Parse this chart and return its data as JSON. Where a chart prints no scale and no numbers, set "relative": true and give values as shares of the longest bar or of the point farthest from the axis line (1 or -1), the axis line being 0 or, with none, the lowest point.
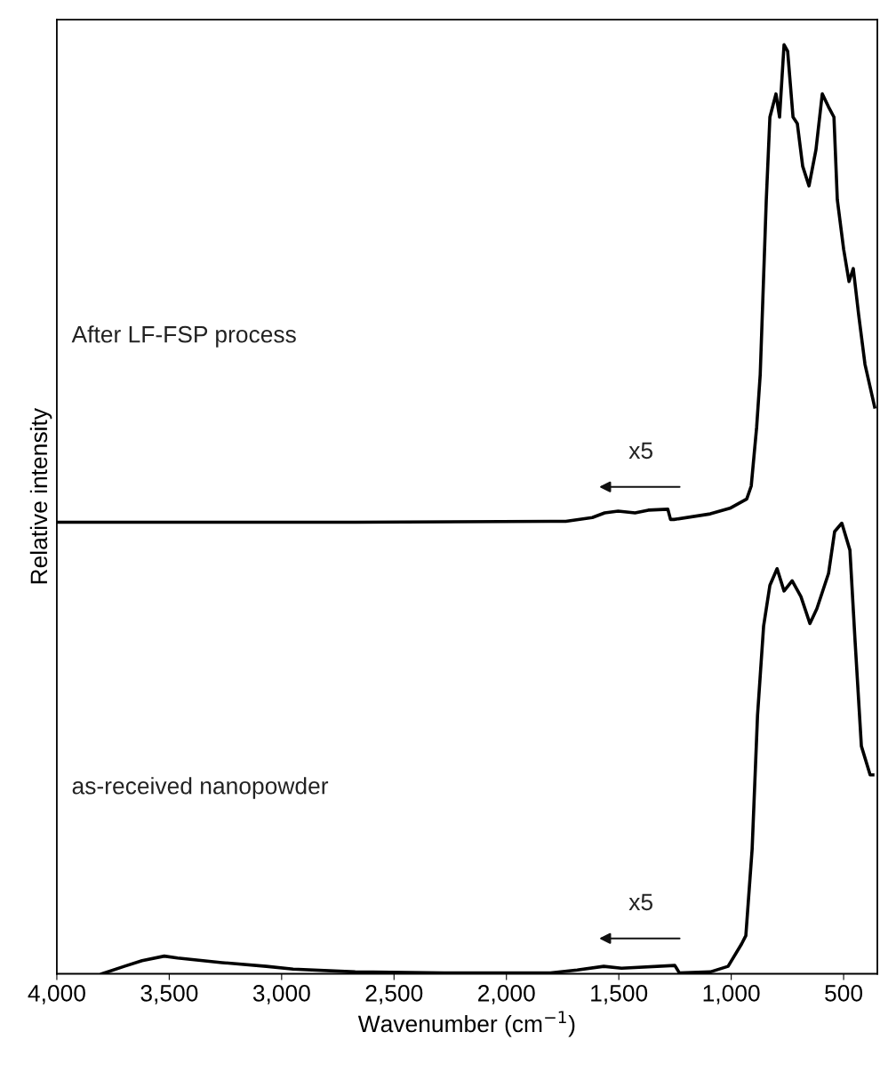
{
  "chart_data": {
    "type": "line",
    "relative": true,
    "xlabel": "Wavenumber (cm$^{−1}$)",
    "ylabel": "Relative intensity",
    "xlim": [
      4000,
      350
    ],
    "xticks": [
      {
        "value": 4000,
        "label": "4,000"
      },
      {
        "value": 3500,
        "label": "3,500"
      },
      {
        "value": 3000,
        "label": "3,000"
      },
      {
        "value": 2500,
        "label": "2,500"
      },
      {
        "value": 2000,
        "label": "2,000"
      },
      {
        "value": 1500,
        "label": "1,500"
      },
      {
        "value": 1000,
        "label": "1,000"
      },
      500
    ],
    "tick_labels": "x",
    "grid": false,
    "legend": false,
    "marker": "none",
    "line_style": "solid",
    "series": [
      {
        "color": "#000000",
        "x": [
          4000,
          2673,
          1804,
          1736,
          1618,
          1563,
          1503,
          1428,
          1369,
          1282,
          1270,
          1254,
          1093,
          1006,
          931,
          911,
          887,
          871,
          844,
          828,
          801,
          785,
          765,
          749,
          725,
          706,
          682,
          654,
          623,
          595,
          567,
          543,
          528,
          500,
          476,
          457,
          433,
          405,
          362
        ],
        "values": [
          0.486,
          0.486,
          0.487,
          0.487,
          0.491,
          0.496,
          0.498,
          0.496,
          0.499,
          0.5,
          0.489,
          0.489,
          0.495,
          0.501,
          0.511,
          0.525,
          0.588,
          0.645,
          0.833,
          0.922,
          0.947,
          0.922,
          1.0,
          0.993,
          0.922,
          0.915,
          0.869,
          0.848,
          0.887,
          0.947,
          0.933,
          0.922,
          0.833,
          0.78,
          0.745,
          0.759,
          0.709,
          0.656,
          0.61
        ]
      },
      {
        "color": "#000000",
        "x": [
          3799,
          3700,
          3621,
          3522,
          3463,
          3265,
          3068,
          2949,
          2673,
          2278,
          1804,
          1685,
          1567,
          1488,
          1251,
          1231,
          1093,
          1014,
          954,
          935,
          907,
          883,
          856,
          828,
          796,
          765,
          729,
          690,
          650,
          619,
          567,
          540,
          508,
          472,
          449,
          421,
          382,
          370
        ],
        "values": [
          0,
          0.008,
          0.014,
          0.019,
          0.017,
          0.012,
          0.008,
          0.005,
          0.002,
          0.001,
          0.001,
          0.004,
          0.008,
          0.006,
          0.009,
          0.001,
          0.002,
          0.008,
          0.032,
          0.041,
          0.134,
          0.278,
          0.374,
          0.418,
          0.436,
          0.412,
          0.423,
          0.406,
          0.377,
          0.393,
          0.431,
          0.476,
          0.485,
          0.456,
          0.358,
          0.245,
          0.214,
          0.214
        ]
      }
    ],
    "annotations": [
      "After LF-FSP process",
      "x5",
      "as-received nanopowder",
      "x5"
    ]
  }
}
